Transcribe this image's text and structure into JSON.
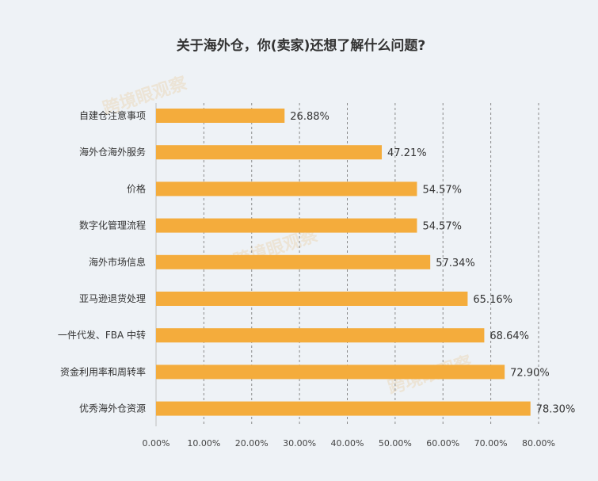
{
  "chart_data": {
    "type": "bar",
    "orientation": "horizontal",
    "title": "关于海外仓，你(卖家)还想了解什么问题?",
    "categories": [
      "自建仓注意事项",
      "海外仓海外服务",
      "价格",
      "数字化管理流程",
      "海外市场信息",
      "亚马逊退货处理",
      "一件代发、FBA 中转",
      "资金利用率和周转率",
      "优秀海外仓资源"
    ],
    "values": [
      26.88,
      47.21,
      54.57,
      54.57,
      57.34,
      65.16,
      68.64,
      72.9,
      78.3
    ],
    "value_labels": [
      "26.88%",
      "47.21%",
      "54.57%",
      "54.57%",
      "57.34%",
      "65.16%",
      "68.64%",
      "72.90%",
      "78.30%"
    ],
    "xlim": [
      0,
      80
    ],
    "x_ticks": [
      "0.00%",
      "10.00%",
      "20.00%",
      "30.00%",
      "40.00%",
      "50.00%",
      "60.00%",
      "70.00%",
      "80.00%"
    ],
    "xlabel": "",
    "ylabel": "",
    "grid": true,
    "bar_color": "#f4ac3c",
    "watermark": "跨境眼观察"
  }
}
